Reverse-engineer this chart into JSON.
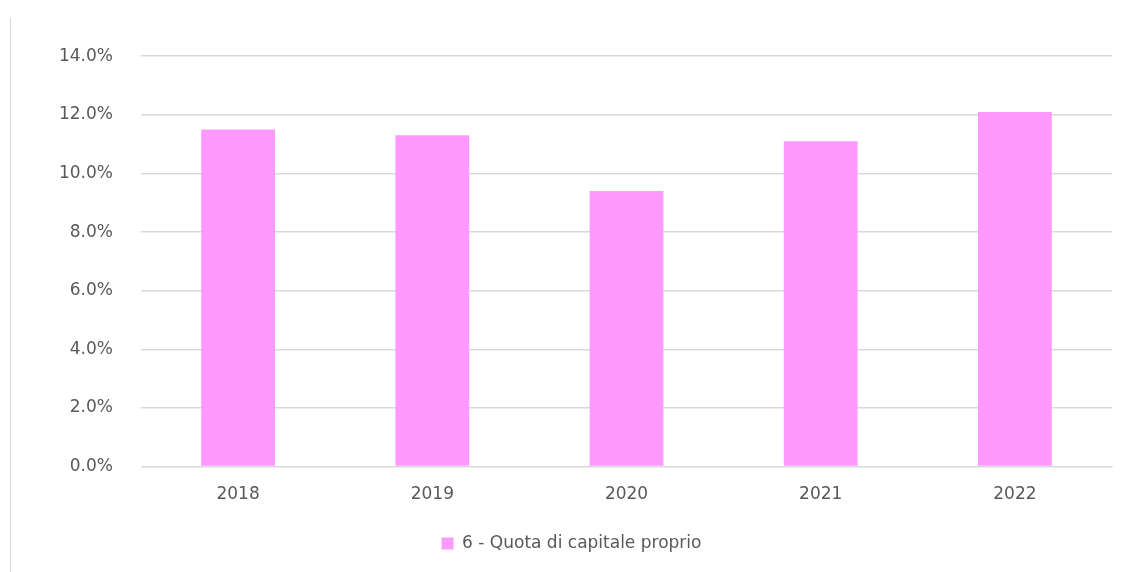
{
  "chart_data": {
    "type": "bar",
    "categories": [
      "2018",
      "2019",
      "2020",
      "2021",
      "2022"
    ],
    "series": [
      {
        "name": "6 - Quota di capitale proprio",
        "color": "#ff99ff",
        "values": [
          11.5,
          11.3,
          9.4,
          11.1,
          12.1
        ]
      }
    ],
    "ylim": [
      0,
      14
    ],
    "yticks": [
      {
        "value": 0,
        "label": "0.0%"
      },
      {
        "value": 2,
        "label": "2.0%"
      },
      {
        "value": 4,
        "label": "4.0%"
      },
      {
        "value": 6,
        "label": "6.0%"
      },
      {
        "value": 8,
        "label": "8.0%"
      },
      {
        "value": 10,
        "label": "10.0%"
      },
      {
        "value": 12,
        "label": "12.0%"
      },
      {
        "value": 14,
        "label": "14.0%"
      }
    ],
    "grid": "y",
    "legend": "bottom"
  }
}
